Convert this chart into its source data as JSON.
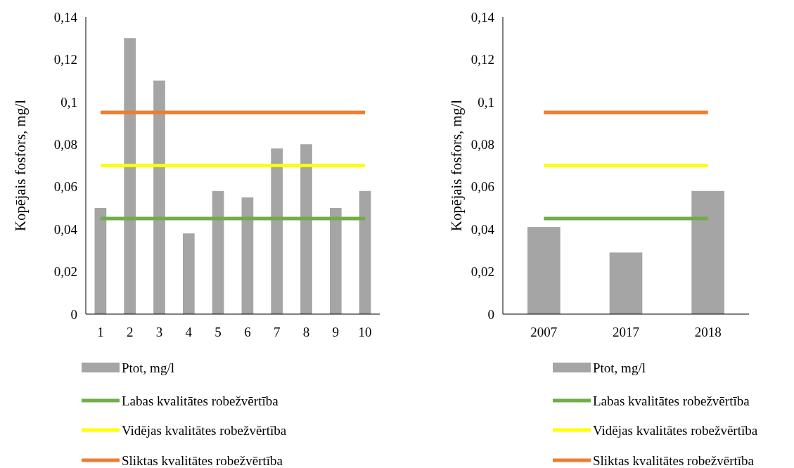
{
  "chart_data": [
    {
      "type": "bar",
      "ylabel": "Kopējais fosfors, mg/l",
      "categories": [
        "1",
        "2",
        "3",
        "4",
        "5",
        "6",
        "7",
        "8",
        "9",
        "10"
      ],
      "ylim": [
        0,
        0.14
      ],
      "yticks": [
        0,
        {
          "value": 0.02,
          "label": "0,02"
        },
        {
          "value": 0.04,
          "label": "0,04"
        },
        {
          "value": 0.06,
          "label": "0,06"
        },
        {
          "value": 0.08,
          "label": "0,08"
        },
        {
          "value": 0.1,
          "label": "0,1"
        },
        {
          "value": 0.12,
          "label": "0,12"
        },
        {
          "value": 0.14,
          "label": "0,14"
        }
      ],
      "legend": "bottom",
      "grid": false,
      "series": [
        {
          "name": "Ptot, mg/l",
          "color": "#a5a5a5",
          "values": [
            0.05,
            0.13,
            0.11,
            0.038,
            0.058,
            0.055,
            0.078,
            0.08,
            0.05,
            0.058
          ]
        },
        {
          "name": "Labas kvalitātes robežvērtība",
          "type": "line",
          "color": "#70ad47",
          "values": [
            0.045,
            0.045,
            0.045,
            0.045,
            0.045,
            0.045,
            0.045,
            0.045,
            0.045,
            0.045
          ]
        },
        {
          "name": "Vidējas kvalitātes robežvērtība",
          "type": "line",
          "color": "#ffff00",
          "values": [
            0.07,
            0.07,
            0.07,
            0.07,
            0.07,
            0.07,
            0.07,
            0.07,
            0.07,
            0.07
          ]
        },
        {
          "name": "Sliktas kvalitātes robežvērtība",
          "type": "line",
          "color": "#ed7d31",
          "values": [
            0.095,
            0.095,
            0.095,
            0.095,
            0.095,
            0.095,
            0.095,
            0.095,
            0.095,
            0.095
          ]
        }
      ]
    },
    {
      "type": "bar",
      "ylabel": "Kopējais fosfors, mg/l",
      "categories": [
        "2007",
        "2017",
        "2018"
      ],
      "ylim": [
        0,
        0.14
      ],
      "yticks": [
        0,
        {
          "value": 0.02,
          "label": "0,02"
        },
        {
          "value": 0.04,
          "label": "0,04"
        },
        {
          "value": 0.06,
          "label": "0,06"
        },
        {
          "value": 0.08,
          "label": "0,08"
        },
        {
          "value": 0.1,
          "label": "0,1"
        },
        {
          "value": 0.12,
          "label": "0,12"
        },
        {
          "value": 0.14,
          "label": "0,14"
        }
      ],
      "legend": "bottom",
      "grid": false,
      "series": [
        {
          "name": "Ptot, mg/l",
          "color": "#a5a5a5",
          "values": [
            0.041,
            0.029,
            0.058
          ]
        },
        {
          "name": "Labas kvalitātes robežvērtība",
          "type": "line",
          "color": "#70ad47",
          "values": [
            0.045,
            0.045,
            0.045
          ]
        },
        {
          "name": "Vidējas kvalitātes robežvērtība",
          "type": "line",
          "color": "#ffff00",
          "values": [
            0.07,
            0.07,
            0.07
          ]
        },
        {
          "name": "Sliktas kvalitātes robežvērtība",
          "type": "line",
          "color": "#ed7d31",
          "values": [
            0.095,
            0.095,
            0.095
          ]
        }
      ]
    }
  ]
}
